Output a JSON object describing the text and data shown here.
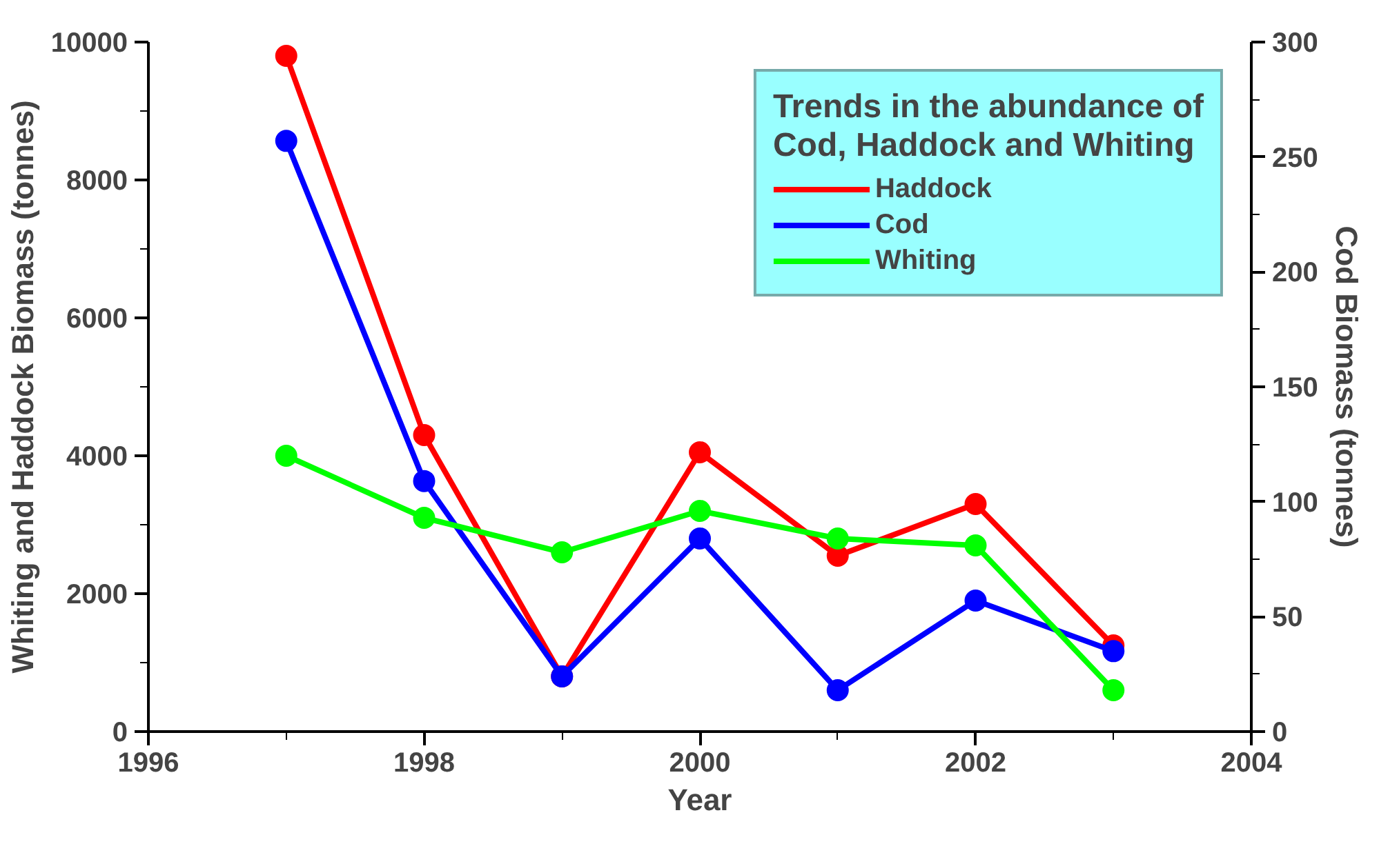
{
  "chart_data": {
    "type": "line",
    "legend_title": "Trends in the abundance of\nCod, Haddock and Whiting",
    "xlabel": "Year",
    "ylabel": "Whiting and Haddock Biomass (tonnes)",
    "y2label": "Cod Biomass (tonnes)",
    "x": [
      1997,
      1998,
      1999,
      2000,
      2001,
      2002,
      2003
    ],
    "series": [
      {
        "name": "Haddock",
        "color": "#ff0000",
        "values": [
          9800,
          4300,
          800,
          4050,
          2550,
          3300,
          1250
        ]
      },
      {
        "name": "Cod",
        "color": "#0000ff",
        "axis": "y2",
        "values": [
          257,
          109,
          24,
          84,
          18,
          57,
          35
        ]
      },
      {
        "name": "Whiting",
        "color": "#00ff00",
        "values": [
          4000,
          3100,
          2600,
          3200,
          2800,
          2700,
          600
        ]
      }
    ],
    "xlim": [
      1996,
      2004
    ],
    "xticks": [
      1996,
      1998,
      2000,
      2002,
      2004
    ],
    "ylim": [
      0,
      10000
    ],
    "yticks": [
      0,
      2000,
      4000,
      6000,
      8000,
      10000
    ],
    "y2lim": [
      0,
      300
    ],
    "y2ticks": [
      0,
      50,
      100,
      150,
      200,
      250,
      300
    ],
    "marker": "circle",
    "line_style": "solid",
    "legend": "top right",
    "grid": false
  }
}
